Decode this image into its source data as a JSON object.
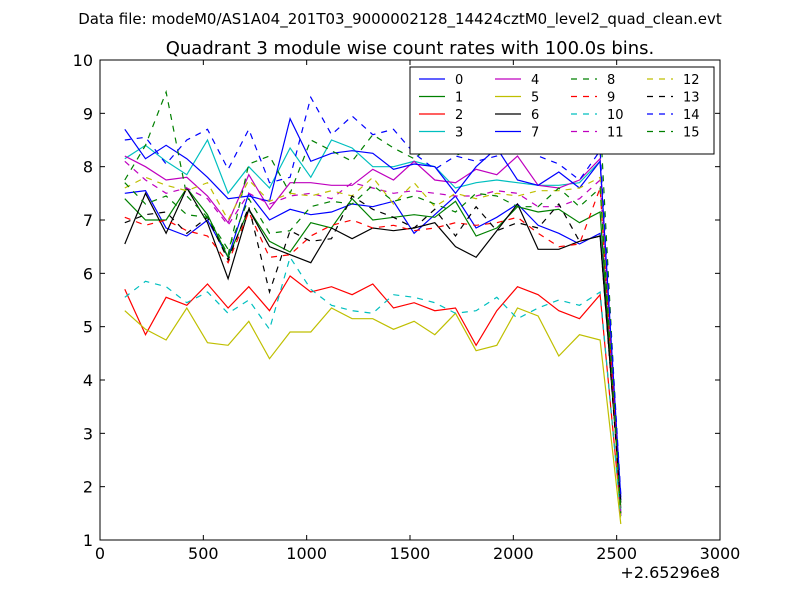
{
  "chart_data": {
    "type": "line",
    "suptitle": "Data file: modeM0/AS1A04_201T03_9000002128_14424cztM0_level2_quad_clean.evt",
    "title": "Quadrant 3 module wise count rates with 100.0s bins.",
    "xlabel": "",
    "ylabel": "",
    "x_offset_label": "+2.65296e8",
    "xlim": [
      0,
      3000
    ],
    "ylim": [
      1,
      10
    ],
    "xticks": [
      0,
      500,
      1000,
      1500,
      2000,
      2500,
      3000
    ],
    "yticks": [
      1,
      2,
      3,
      4,
      5,
      6,
      7,
      8,
      9,
      10
    ],
    "grid": false,
    "legend_position": "top-right",
    "legend_columns": 4,
    "x": [
      120,
      220,
      320,
      420,
      520,
      620,
      720,
      820,
      920,
      1020,
      1120,
      1220,
      1320,
      1420,
      1520,
      1620,
      1720,
      1820,
      1920,
      2020,
      2120,
      2220,
      2320,
      2420,
      2520
    ],
    "series": [
      {
        "name": "0",
        "color": "#0000ff",
        "dash": "solid",
        "values": [
          7.5,
          7.55,
          6.85,
          6.7,
          7.0,
          6.3,
          7.5,
          7.0,
          7.2,
          7.1,
          7.15,
          7.3,
          7.25,
          7.35,
          6.75,
          7.1,
          7.45,
          6.85,
          7.05,
          7.3,
          6.9,
          6.75,
          6.55,
          6.75,
          1.75
        ]
      },
      {
        "name": "1",
        "color": "#008000",
        "dash": "solid",
        "values": [
          7.4,
          7.0,
          7.0,
          7.6,
          7.1,
          6.3,
          7.2,
          6.6,
          6.4,
          6.95,
          6.85,
          7.4,
          7.0,
          7.05,
          7.1,
          7.05,
          7.35,
          6.7,
          6.85,
          7.25,
          7.15,
          7.2,
          6.95,
          7.15,
          1.6
        ]
      },
      {
        "name": "2",
        "color": "#ff0000",
        "dash": "solid",
        "values": [
          5.7,
          4.85,
          5.55,
          5.4,
          5.8,
          5.35,
          5.75,
          5.3,
          5.95,
          5.65,
          5.75,
          5.6,
          5.8,
          5.35,
          5.45,
          5.3,
          5.35,
          4.65,
          5.3,
          5.75,
          5.6,
          5.3,
          5.15,
          5.6,
          1.5
        ]
      },
      {
        "name": "3",
        "color": "#00bfbf",
        "dash": "solid",
        "values": [
          8.15,
          8.4,
          8.1,
          7.85,
          8.5,
          7.5,
          8.0,
          7.6,
          8.35,
          7.8,
          8.5,
          8.35,
          8.0,
          8.0,
          8.1,
          8.0,
          7.6,
          7.7,
          7.75,
          7.7,
          7.65,
          7.65,
          7.7,
          8.1,
          1.55
        ]
      },
      {
        "name": "4",
        "color": "#bf00bf",
        "dash": "solid",
        "values": [
          8.2,
          8.0,
          7.75,
          7.8,
          7.45,
          6.95,
          7.85,
          7.2,
          7.7,
          7.7,
          7.65,
          7.65,
          7.95,
          7.75,
          8.1,
          7.75,
          7.7,
          7.95,
          7.85,
          8.2,
          7.65,
          7.6,
          7.75,
          8.15,
          1.45
        ]
      },
      {
        "name": "5",
        "color": "#bfbf00",
        "dash": "solid",
        "values": [
          5.3,
          4.95,
          4.75,
          5.35,
          4.7,
          4.65,
          5.1,
          4.4,
          4.9,
          4.9,
          5.35,
          5.15,
          5.15,
          4.95,
          5.1,
          4.85,
          5.25,
          4.55,
          4.65,
          5.35,
          5.2,
          4.45,
          4.85,
          4.75,
          1.3
        ]
      },
      {
        "name": "6",
        "color": "#000000",
        "dash": "solid",
        "values": [
          6.55,
          7.5,
          6.75,
          7.6,
          6.95,
          5.9,
          7.2,
          6.5,
          6.35,
          6.2,
          6.85,
          6.65,
          6.85,
          6.8,
          6.85,
          6.95,
          6.5,
          6.3,
          6.8,
          7.3,
          6.45,
          6.45,
          6.6,
          6.7,
          1.7
        ]
      },
      {
        "name": "7",
        "color": "#0000ff",
        "dash": "solid",
        "values": [
          8.7,
          8.15,
          8.4,
          8.15,
          7.8,
          7.4,
          7.45,
          7.35,
          8.9,
          8.1,
          8.25,
          8.3,
          8.25,
          7.95,
          8.05,
          8.0,
          7.5,
          8.0,
          8.35,
          7.75,
          7.65,
          7.9,
          7.6,
          8.1,
          1.8
        ]
      },
      {
        "name": "8",
        "color": "#008000",
        "dash": "dashed",
        "values": [
          7.75,
          8.4,
          9.4,
          7.45,
          7.05,
          6.35,
          8.05,
          8.2,
          7.5,
          8.5,
          8.3,
          8.1,
          8.6,
          8.35,
          8.15,
          8.45,
          8.2,
          8.4,
          8.35,
          8.45,
          8.4,
          8.35,
          8.4,
          8.9,
          1.55
        ]
      },
      {
        "name": "9",
        "color": "#ff0000",
        "dash": "dashed",
        "values": [
          7.05,
          6.9,
          7.0,
          6.8,
          6.7,
          6.2,
          7.15,
          6.3,
          6.35,
          6.7,
          6.9,
          7.0,
          6.85,
          6.9,
          6.8,
          6.85,
          6.95,
          6.9,
          6.95,
          7.05,
          6.75,
          6.5,
          6.55,
          7.6,
          1.5
        ]
      },
      {
        "name": "10",
        "color": "#00bfbf",
        "dash": "dashed",
        "values": [
          5.55,
          5.85,
          5.75,
          5.45,
          5.65,
          5.25,
          5.5,
          4.95,
          6.3,
          5.7,
          5.4,
          5.3,
          5.25,
          5.6,
          5.55,
          5.45,
          5.25,
          5.3,
          5.55,
          5.15,
          5.35,
          5.5,
          5.4,
          5.65,
          1.45
        ]
      },
      {
        "name": "11",
        "color": "#bf00bf",
        "dash": "dashed",
        "values": [
          8.1,
          7.75,
          7.5,
          7.6,
          7.4,
          6.9,
          7.5,
          7.3,
          7.45,
          7.5,
          7.4,
          7.7,
          7.6,
          7.5,
          7.55,
          7.5,
          7.45,
          7.45,
          7.55,
          7.5,
          7.25,
          7.25,
          7.4,
          7.75,
          1.4
        ]
      },
      {
        "name": "12",
        "color": "#bfbf00",
        "dash": "dashed",
        "values": [
          7.6,
          7.8,
          7.65,
          7.55,
          7.7,
          7.0,
          7.75,
          7.35,
          7.5,
          7.45,
          7.55,
          7.45,
          7.8,
          7.3,
          7.7,
          7.25,
          7.5,
          7.4,
          7.5,
          7.45,
          7.55,
          7.55,
          7.6,
          7.8,
          1.35
        ]
      },
      {
        "name": "13",
        "color": "#000000",
        "dash": "dashed",
        "values": [
          6.95,
          7.1,
          7.15,
          6.75,
          7.05,
          6.25,
          7.25,
          5.65,
          6.8,
          6.6,
          6.65,
          7.45,
          7.2,
          7.05,
          6.85,
          7.2,
          6.7,
          7.25,
          6.8,
          6.95,
          6.85,
          7.3,
          6.6,
          6.7,
          1.65
        ]
      },
      {
        "name": "14",
        "color": "#0000ff",
        "dash": "dashed",
        "values": [
          8.5,
          8.55,
          8.05,
          8.5,
          8.7,
          7.95,
          8.7,
          7.7,
          7.8,
          9.3,
          8.6,
          8.95,
          8.6,
          8.7,
          8.25,
          7.95,
          8.2,
          8.1,
          8.2,
          8.5,
          8.2,
          8.05,
          7.75,
          8.3,
          1.85
        ]
      },
      {
        "name": "15",
        "color": "#008000",
        "dash": "dashed",
        "values": [
          7.7,
          7.3,
          7.45,
          7.1,
          7.05,
          6.45,
          7.4,
          6.75,
          6.8,
          7.25,
          7.35,
          7.3,
          7.65,
          7.35,
          7.45,
          7.3,
          7.15,
          7.5,
          7.45,
          7.25,
          7.25,
          7.6,
          7.25,
          7.6,
          1.5
        ]
      }
    ]
  }
}
